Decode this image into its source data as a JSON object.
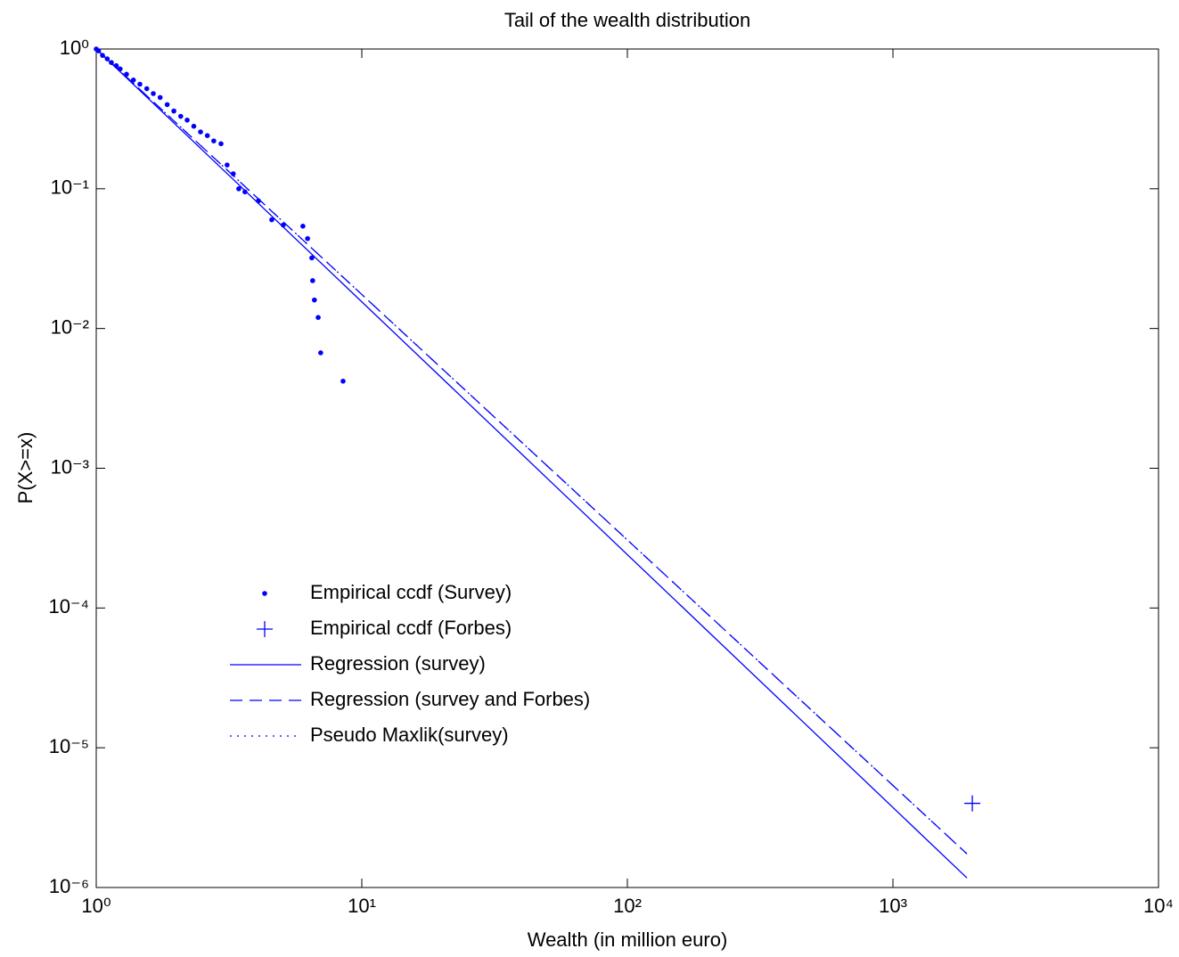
{
  "chart_data": {
    "type": "line",
    "title": "Tail of the wealth distribution",
    "x_label": "Wealth (in million euro)",
    "y_label": "P(X>=x)",
    "log_x": true,
    "log_y": true,
    "xlim": [
      1,
      10000
    ],
    "ylim": [
      1e-06,
      1
    ],
    "xticks": [
      {
        "value": 1,
        "label": "10⁰"
      },
      {
        "value": 10,
        "label": "10¹"
      },
      {
        "value": 100,
        "label": "10²"
      },
      {
        "value": 1000,
        "label": "10³"
      },
      {
        "value": 10000,
        "label": "10⁴"
      }
    ],
    "yticks": [
      {
        "value": 1e-06,
        "label": "10⁻⁶"
      },
      {
        "value": 1e-05,
        "label": "10⁻⁵"
      },
      {
        "value": 0.0001,
        "label": "10⁻⁴"
      },
      {
        "value": 0.001,
        "label": "10⁻³"
      },
      {
        "value": 0.01,
        "label": "10⁻²"
      },
      {
        "value": 0.1,
        "label": "10⁻¹"
      },
      {
        "value": 1,
        "label": "10⁰"
      }
    ],
    "series": [
      {
        "name": "Empirical ccdf (Survey)",
        "color": "#0000ff",
        "style": "dot",
        "x": [
          1.0,
          1.02,
          1.056,
          1.1,
          1.14,
          1.19,
          1.23,
          1.3,
          1.38,
          1.46,
          1.55,
          1.64,
          1.74,
          1.85,
          1.96,
          2.08,
          2.2,
          2.33,
          2.47,
          2.62,
          2.77,
          2.95,
          3.11,
          3.28,
          3.44,
          3.63,
          4.08,
          4.58,
          5.06,
          6.0,
          6.25,
          6.48,
          6.53,
          6.63,
          6.85,
          7.0,
          8.5
        ],
        "values": [
          1.0,
          0.97,
          0.9,
          0.85,
          0.8,
          0.76,
          0.72,
          0.66,
          0.6,
          0.56,
          0.52,
          0.48,
          0.45,
          0.4,
          0.36,
          0.33,
          0.31,
          0.28,
          0.255,
          0.24,
          0.22,
          0.21,
          0.148,
          0.128,
          0.1,
          0.095,
          0.082,
          0.06,
          0.055,
          0.054,
          0.044,
          0.032,
          0.022,
          0.016,
          0.012,
          0.0067,
          0.0042
        ]
      },
      {
        "name": "Empirical ccdf (Forbes)",
        "color": "#0000ff",
        "style": "plus",
        "x": [
          1990
        ],
        "values": [
          4e-06
        ]
      },
      {
        "name": "Regression (survey)",
        "color": "#0000ff",
        "style": "solid",
        "x": [
          1,
          1900
        ],
        "values": [
          1,
          1.17e-06
        ]
      },
      {
        "name": "Regression (survey and Forbes)",
        "color": "#0000ff",
        "style": "dashed",
        "x": [
          1,
          1900
        ],
        "values": [
          1,
          1.74e-06
        ]
      },
      {
        "name": "Pseudo Maxlik(survey)",
        "color": "#0000ff",
        "style": "dotted",
        "x": [
          1,
          1900
        ],
        "values": [
          1,
          1.74e-06
        ]
      }
    ]
  }
}
